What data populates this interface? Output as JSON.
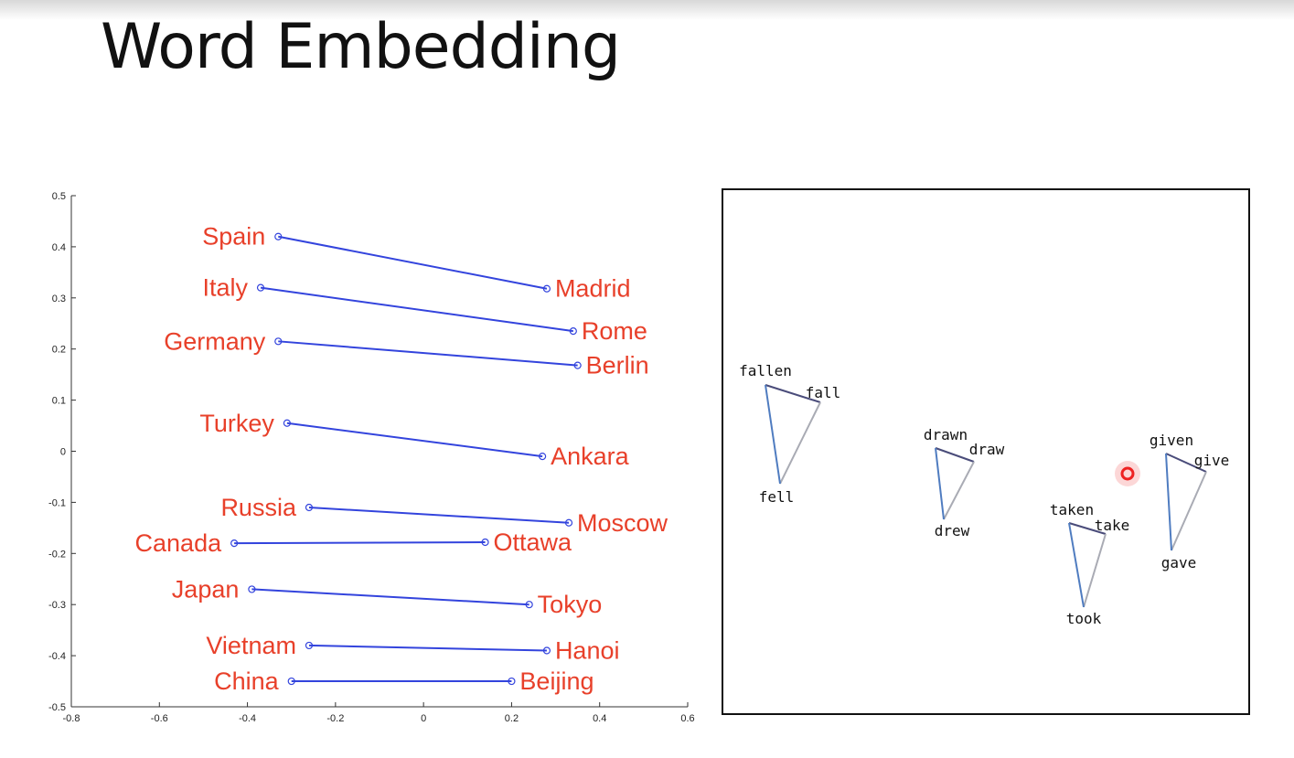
{
  "slide": {
    "title": "Word Embedding"
  },
  "chart_data": [
    {
      "type": "scatter",
      "title": "",
      "xlabel": "",
      "ylabel": "",
      "xlim": [
        -0.8,
        0.6
      ],
      "ylim": [
        -0.5,
        0.5
      ],
      "xticks": [
        "-0.8",
        "-0.6",
        "-0.4",
        "-0.2",
        "0",
        "0.2",
        "0.4",
        "0.6"
      ],
      "yticks": [
        "0.5",
        "0.4",
        "0.3",
        "0.2",
        "0.1",
        "0",
        "-0.1",
        "-0.2",
        "-0.3",
        "-0.4",
        "-0.5"
      ],
      "grid": false,
      "line_color": "#3344dd",
      "label_color": "#e8402a",
      "pairs": [
        {
          "country": "Spain",
          "capital": "Madrid",
          "country_xy": [
            -0.33,
            0.42
          ],
          "capital_xy": [
            0.28,
            0.318
          ]
        },
        {
          "country": "Italy",
          "capital": "Rome",
          "country_xy": [
            -0.37,
            0.32
          ],
          "capital_xy": [
            0.34,
            0.235
          ]
        },
        {
          "country": "Germany",
          "capital": "Berlin",
          "country_xy": [
            -0.33,
            0.215
          ],
          "capital_xy": [
            0.35,
            0.168
          ]
        },
        {
          "country": "Turkey",
          "capital": "Ankara",
          "country_xy": [
            -0.31,
            0.055
          ],
          "capital_xy": [
            0.27,
            -0.01
          ]
        },
        {
          "country": "Russia",
          "capital": "Moscow",
          "country_xy": [
            -0.26,
            -0.11
          ],
          "capital_xy": [
            0.33,
            -0.14
          ]
        },
        {
          "country": "Canada",
          "capital": "Ottawa",
          "country_xy": [
            -0.43,
            -0.18
          ],
          "capital_xy": [
            0.14,
            -0.178
          ]
        },
        {
          "country": "Japan",
          "capital": "Tokyo",
          "country_xy": [
            -0.39,
            -0.27
          ],
          "capital_xy": [
            0.24,
            -0.3
          ]
        },
        {
          "country": "Vietnam",
          "capital": "Hanoi",
          "country_xy": [
            -0.26,
            -0.38
          ],
          "capital_xy": [
            0.28,
            -0.39
          ]
        },
        {
          "country": "China",
          "capital": "Beijing",
          "country_xy": [
            -0.3,
            -0.45
          ],
          "capital_xy": [
            0.2,
            -0.45
          ]
        }
      ]
    },
    {
      "type": "diagram",
      "title": "",
      "xlabel": "",
      "ylabel": "",
      "grid": false,
      "triangles": [
        {
          "labels": [
            "fallen",
            "fall",
            "fell"
          ]
        },
        {
          "labels": [
            "drawn",
            "draw",
            "drew"
          ]
        },
        {
          "labels": [
            "taken",
            "take",
            "took"
          ]
        },
        {
          "labels": [
            "given",
            "give",
            "gave"
          ]
        }
      ],
      "edge_colors": {
        "participle_to_base": "#4a4c7a",
        "base_to_past": "#a9abb4",
        "participle_to_past": "#4f7cc0"
      },
      "cursor_color": "#ee2222"
    }
  ]
}
